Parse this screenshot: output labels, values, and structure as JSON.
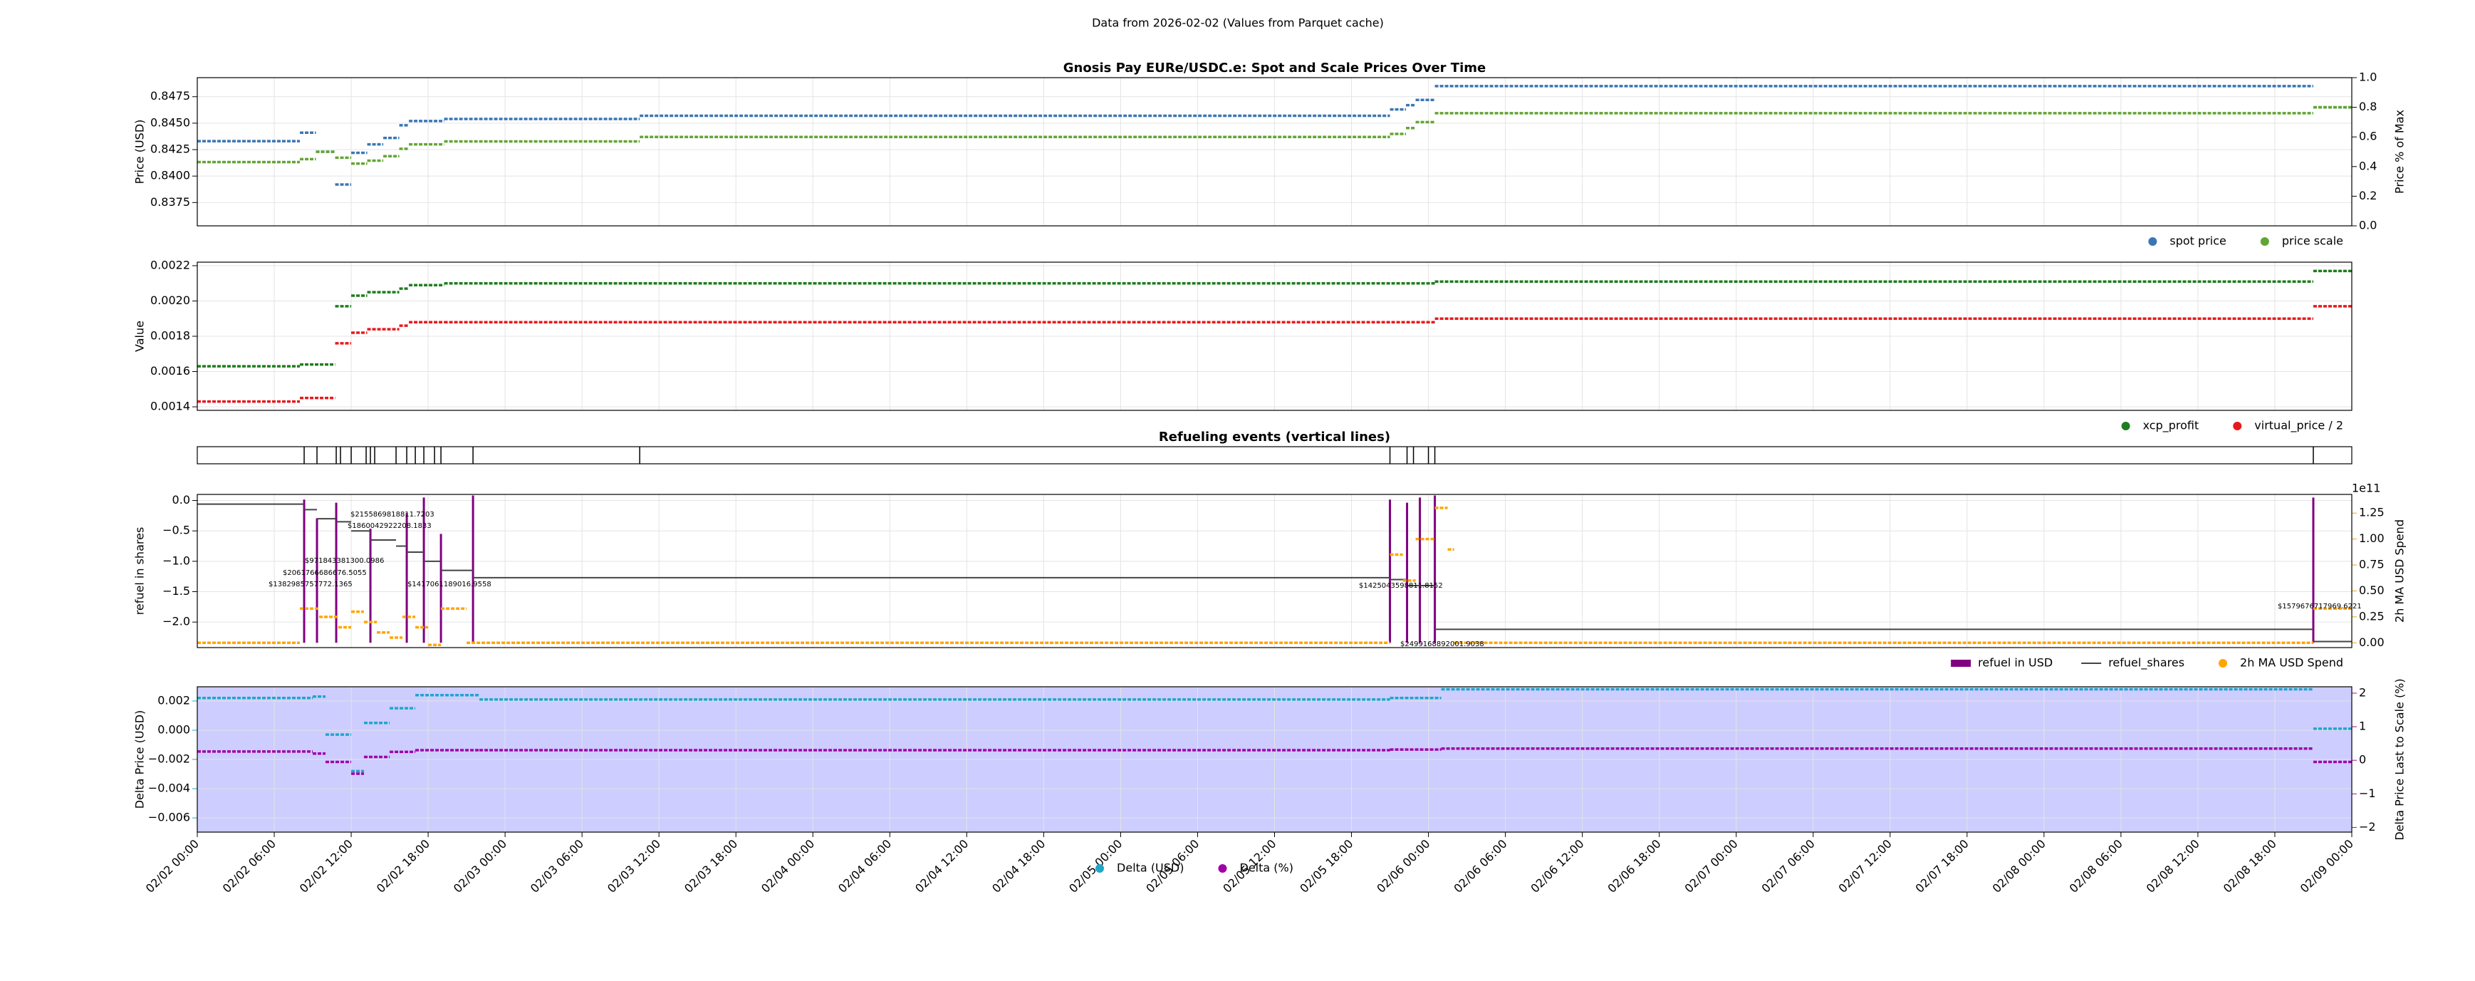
{
  "page_title": "Data from 2026-02-02 (Values from Parquet cache)",
  "chart_data": [
    {
      "type": "line",
      "title": "Gnosis Pay EURe/USDC.e: Spot and Scale Prices Over Time",
      "ylabel": "Price (USD)",
      "y2label": "Price % of Max",
      "ylim": [
        0.8353,
        0.8493
      ],
      "yticks": [
        0.8375,
        {
          "value": 0.84,
          "label": "0.8400"
        },
        0.8425,
        {
          "value": 0.845,
          "label": "0.8450"
        },
        0.8475
      ],
      "y2lim": [
        0,
        1
      ],
      "y2ticks": [
        {
          "value": 0,
          "label": "0.0"
        },
        0.2,
        0.4,
        0.6,
        0.8,
        {
          "value": 1,
          "label": "1.0"
        }
      ],
      "grid": true,
      "legend": "below-right",
      "series": [
        {
          "name": "spot price",
          "color": "#3a76b4",
          "style": "dots",
          "x": [
            "02/02 00:00",
            "02/02 08:00",
            "02/02 09:15",
            "02/02 10:45",
            "02/02 12:00",
            "02/02 13:15",
            "02/02 14:30",
            "02/02 15:45",
            "02/02 16:30",
            "02/02 19:15",
            "02/03 10:30",
            "02/05 21:00",
            "02/05 22:15",
            "02/05 23:00",
            "02/06 00:30",
            "02/08 21:00"
          ],
          "values": [
            0.8433,
            0.8441,
            0.8423,
            0.8392,
            0.8422,
            0.843,
            0.8436,
            0.8448,
            0.8452,
            0.8454,
            0.8457,
            0.8463,
            0.8467,
            0.8472,
            0.8485,
            0.8465
          ]
        },
        {
          "name": "price scale",
          "color": "#62a534",
          "style": "dots",
          "axis": "y2",
          "x": [
            "02/02 00:00",
            "02/02 08:00",
            "02/02 09:15",
            "02/02 10:45",
            "02/02 12:00",
            "02/02 13:15",
            "02/02 14:30",
            "02/02 15:45",
            "02/02 16:30",
            "02/02 19:15",
            "02/03 10:30",
            "02/05 21:00",
            "02/05 22:15",
            "02/05 23:00",
            "02/06 00:30",
            "02/08 21:00"
          ],
          "values": [
            0.43,
            0.45,
            0.5,
            0.46,
            0.42,
            0.44,
            0.47,
            0.52,
            0.55,
            0.57,
            0.6,
            0.62,
            0.66,
            0.7,
            0.76,
            0.8
          ]
        }
      ]
    },
    {
      "type": "line",
      "ylabel": "Value",
      "ylim": [
        0.00138,
        0.00222
      ],
      "yticks": [
        0.0014,
        0.0016,
        0.0018,
        {
          "value": 0.002,
          "label": "0.0020"
        },
        0.0022
      ],
      "grid": true,
      "legend": "below-right",
      "series": [
        {
          "name": "xcp_profit",
          "color": "#1e7d1e",
          "style": "dots",
          "x": [
            "02/02 00:00",
            "02/02 08:00",
            "02/02 10:45",
            "02/02 12:00",
            "02/02 13:15",
            "02/02 15:45",
            "02/02 16:30",
            "02/02 19:15",
            "02/06 00:30",
            "02/08 21:00"
          ],
          "values": [
            0.00163,
            0.00164,
            0.00197,
            0.00203,
            0.00205,
            0.00207,
            0.00209,
            0.0021,
            0.00211,
            0.00217
          ]
        },
        {
          "name": "virtual_price / 2",
          "color": "#e8191c",
          "style": "dots",
          "x": [
            "02/02 00:00",
            "02/02 08:00",
            "02/02 10:45",
            "02/02 12:00",
            "02/02 13:15",
            "02/02 15:45",
            "02/02 16:30",
            "02/02 19:15",
            "02/06 00:30",
            "02/08 21:00"
          ],
          "values": [
            0.00143,
            0.00145,
            0.00176,
            0.00182,
            0.00184,
            0.00186,
            0.00188,
            0.00188,
            0.0019,
            0.00197
          ]
        }
      ]
    },
    {
      "type": "events",
      "title": "Refueling events (vertical lines)",
      "color": "#000000",
      "x": [
        "02/02 08:20",
        "02/02 09:20",
        "02/02 10:50",
        "02/02 11:10",
        "02/02 12:00",
        "02/02 13:10",
        "02/02 13:30",
        "02/02 13:50",
        "02/02 15:30",
        "02/02 16:20",
        "02/02 17:00",
        "02/02 17:40",
        "02/02 18:30",
        "02/02 19:00",
        "02/02 21:30",
        "02/03 10:30",
        "02/05 21:00",
        "02/05 22:20",
        "02/05 22:50",
        "02/06 00:00",
        "02/06 00:30",
        "02/08 21:00"
      ]
    },
    {
      "type": "line",
      "ylabel": "refuel in shares",
      "y2label": "2h MA USD Spend",
      "y2_offset_label": "1e11",
      "y2color": "#f5a20a",
      "ylim": [
        -2.42,
        0.1
      ],
      "yticks": [
        {
          "value": 0,
          "label": "0.0"
        },
        {
          "value": -0.5,
          "label": "−0.5"
        },
        {
          "value": -1,
          "label": "−1.0"
        },
        {
          "value": -1.5,
          "label": "−1.5"
        },
        {
          "value": -2,
          "label": "−2.0"
        }
      ],
      "y2lim": [
        -0.046,
        1.43
      ],
      "y2ticks": [
        {
          "value": 0,
          "label": "0.00"
        },
        0.25,
        {
          "value": 0.5,
          "label": "0.50"
        },
        0.75,
        {
          "value": 1,
          "label": "1.00"
        },
        1.25
      ],
      "grid": true,
      "legend": "below-right",
      "annotations": [
        "$1382985757772.1365",
        "$2061766686676.5055",
        "$971843381300.0986",
        "$2155869818811.7203",
        "$1860042922208.1833",
        "$1417061189016.9558",
        "$1425043598811.8152",
        "$2499168892001.9038",
        "$1579676717969.6221"
      ],
      "series": [
        {
          "name": "refuel in USD",
          "color": "#800080",
          "style": "vlines",
          "axis": "y2",
          "x": [
            "02/02 08:20",
            "02/02 09:20",
            "02/02 10:50",
            "02/02 13:30",
            "02/02 16:20",
            "02/02 17:40",
            "02/02 19:00",
            "02/02 21:30",
            "02/05 21:00",
            "02/05 22:20",
            "02/05 23:20",
            "02/06 00:30",
            "02/08 21:00"
          ],
          "values": [
            1.38,
            1.2,
            1.35,
            1.1,
            1.25,
            1.4,
            1.05,
            1.42,
            1.38,
            1.35,
            1.4,
            1.42,
            1.4
          ]
        },
        {
          "name": "refuel_shares",
          "color": "#444444",
          "style": "line",
          "x": [
            "02/02 00:00",
            "02/02 08:20",
            "02/02 09:20",
            "02/02 10:50",
            "02/02 12:00",
            "02/02 13:30",
            "02/02 15:30",
            "02/02 16:20",
            "02/02 17:40",
            "02/02 19:00",
            "02/02 21:30",
            "02/05 21:00",
            "02/05 22:20",
            "02/06 00:30",
            "02/08 21:00"
          ],
          "values": [
            -0.06,
            -0.15,
            -0.3,
            -0.35,
            -0.5,
            -0.65,
            -0.75,
            -0.85,
            -1,
            -1.15,
            -1.27,
            -1.3,
            -1.4,
            -2.12,
            -2.32
          ]
        },
        {
          "name": "2h MA USD Spend",
          "color": "#ffa500",
          "style": "dots",
          "axis": "y2",
          "x": [
            "02/02 00:00",
            "02/02 08:00",
            "02/02 09:30",
            "02/02 11:00",
            "02/02 12:00",
            "02/02 13:00",
            "02/02 14:00",
            "02/02 15:00",
            "02/02 16:00",
            "02/02 17:00",
            "02/02 18:00",
            "02/02 19:00",
            "02/02 21:00",
            "02/05 21:00",
            "02/05 22:00",
            "02/05 23:00",
            "02/06 00:30",
            "02/06 01:30",
            "02/06 02:00",
            "02/08 21:00"
          ],
          "values": [
            0,
            0.33,
            0.25,
            0.15,
            0.3,
            0.2,
            0.1,
            0.05,
            0.25,
            0.15,
            -0.02,
            0.33,
            0,
            0.85,
            0.6,
            1,
            1.3,
            0.9,
            0,
            0.33
          ]
        }
      ]
    },
    {
      "type": "line",
      "ylabel": "Delta Price (USD)",
      "y2label": "Delta Price Last to Scale (%)",
      "ycolor": "#17a9c9",
      "y2color": "#b000b0",
      "fill_color": "#c8c8ff",
      "ylim": [
        -0.00697,
        0.00297
      ],
      "yticks": [
        0.002,
        {
          "value": 0,
          "label": "0.000"
        },
        {
          "value": -0.002,
          "label": "−0.002"
        },
        {
          "value": -0.004,
          "label": "−0.004"
        },
        {
          "value": -0.006,
          "label": "−0.006"
        }
      ],
      "y2lim": [
        -2.14,
        2.19
      ],
      "y2ticks": [
        {
          "value": -2,
          "label": "−2"
        },
        {
          "value": -1,
          "label": "−1"
        },
        0,
        1,
        2
      ],
      "xlim": [
        "02/02 00:00",
        "02/09 00:00"
      ],
      "xticks": [
        "02/02 00:00",
        "02/02 06:00",
        "02/02 12:00",
        "02/02 18:00",
        "02/03 00:00",
        "02/03 06:00",
        "02/03 12:00",
        "02/03 18:00",
        "02/04 00:00",
        "02/04 06:00",
        "02/04 12:00",
        "02/04 18:00",
        "02/05 00:00",
        "02/05 06:00",
        "02/05 12:00",
        "02/05 18:00",
        "02/06 00:00",
        "02/06 06:00",
        "02/06 12:00",
        "02/06 18:00",
        "02/07 00:00",
        "02/07 06:00",
        "02/07 12:00",
        "02/07 18:00",
        "02/08 00:00",
        "02/08 06:00",
        "02/08 12:00",
        "02/08 18:00",
        "02/09 00:00"
      ],
      "grid": true,
      "legend": "below-center",
      "series": [
        {
          "name": "Delta (USD)",
          "color": "#1fa6c9",
          "style": "dots",
          "x": [
            "02/02 00:00",
            "02/02 09:00",
            "02/02 10:00",
            "02/02 12:00",
            "02/02 13:00",
            "02/02 15:00",
            "02/02 17:00",
            "02/02 22:00",
            "02/05 21:00",
            "02/06 01:00",
            "02/08 21:00"
          ],
          "values": [
            0.0022,
            0.0023,
            -0.0003,
            -0.0028,
            0.0005,
            0.0015,
            0.0024,
            0.0021,
            0.0022,
            0.0028,
            0.0001
          ]
        },
        {
          "name": "Delta (%)",
          "color": "#a000a8",
          "style": "dots",
          "axis": "y2",
          "x": [
            "02/02 00:00",
            "02/02 09:00",
            "02/02 10:00",
            "02/02 12:00",
            "02/02 13:00",
            "02/02 15:00",
            "02/02 17:00",
            "02/02 22:00",
            "02/05 21:00",
            "02/06 01:00",
            "02/08 21:00"
          ],
          "values": [
            0.26,
            0.2,
            -0.05,
            -0.4,
            0.1,
            0.25,
            0.3,
            0.3,
            0.32,
            0.35,
            -0.05
          ]
        }
      ]
    }
  ]
}
